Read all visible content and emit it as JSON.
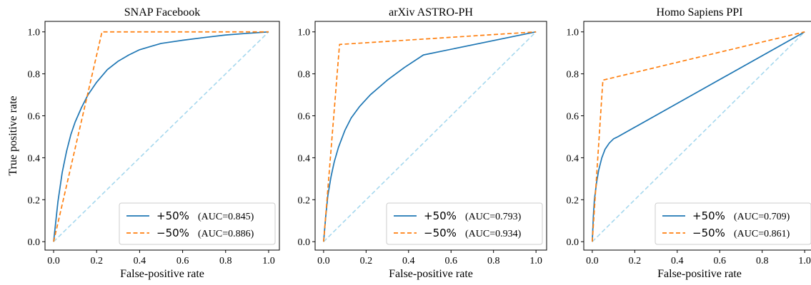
{
  "chart_data": [
    {
      "type": "line",
      "title": "SNAP Facebook",
      "xlabel": "False-positive rate",
      "ylabel": "True positive rate",
      "xlim": [
        -0.04,
        1.05
      ],
      "ylim": [
        -0.04,
        1.05
      ],
      "xticks": [
        0.0,
        0.2,
        0.4,
        0.6,
        0.8,
        1.0
      ],
      "xtick_labels": [
        "0.0",
        "0.2",
        "0.4",
        "0.6",
        "0.8",
        "1.0"
      ],
      "yticks": [
        0.0,
        0.2,
        0.4,
        0.6,
        0.8,
        1.0
      ],
      "ytick_labels": [
        "0.0",
        "0.2",
        "0.4",
        "0.6",
        "0.8",
        "1.0"
      ],
      "legend_position": "lower-right",
      "series": [
        {
          "name": "+50%",
          "auc_text": "(AUC=0.845)",
          "color": "#1f77b4",
          "style": "solid",
          "x": [
            0.0,
            0.02,
            0.04,
            0.06,
            0.08,
            0.1,
            0.13,
            0.16,
            0.2,
            0.25,
            0.3,
            0.35,
            0.4,
            0.45,
            0.5,
            0.6,
            0.7,
            0.8,
            0.9,
            1.0
          ],
          "y": [
            0.0,
            0.19,
            0.33,
            0.43,
            0.51,
            0.57,
            0.64,
            0.7,
            0.76,
            0.82,
            0.86,
            0.89,
            0.915,
            0.93,
            0.945,
            0.96,
            0.973,
            0.985,
            0.993,
            1.0
          ]
        },
        {
          "name": "−50%",
          "auc_text": "(AUC=0.886)",
          "color": "#ff7f0e",
          "style": "dashed",
          "x": [
            0.0,
            0.225,
            1.0
          ],
          "y": [
            0.0,
            1.0,
            1.0
          ]
        }
      ],
      "reference": {
        "x": [
          0.0,
          1.0
        ],
        "y": [
          0.0,
          1.0
        ],
        "color": "#a6d8ee",
        "style": "dashed"
      }
    },
    {
      "type": "line",
      "title": "arXiv ASTRO-PH",
      "xlabel": "False-positive rate",
      "ylabel": "",
      "xlim": [
        -0.04,
        1.05
      ],
      "ylim": [
        -0.04,
        1.05
      ],
      "xticks": [
        0.0,
        0.2,
        0.4,
        0.6,
        0.8,
        1.0
      ],
      "xtick_labels": [
        "0.0",
        "0.2",
        "0.4",
        "0.6",
        "0.8",
        "1.0"
      ],
      "yticks": [
        0.0,
        0.2,
        0.4,
        0.6,
        0.8,
        1.0
      ],
      "ytick_labels": [
        "0.0",
        "0.2",
        "0.4",
        "0.6",
        "0.8",
        "1.0"
      ],
      "legend_position": "lower-right",
      "series": [
        {
          "name": "+50%",
          "auc_text": "(AUC=0.793)",
          "color": "#1f77b4",
          "style": "solid",
          "x": [
            0.0,
            0.01,
            0.02,
            0.035,
            0.05,
            0.07,
            0.1,
            0.13,
            0.17,
            0.22,
            0.3,
            0.38,
            0.47,
            1.0
          ],
          "y": [
            0.0,
            0.12,
            0.22,
            0.31,
            0.38,
            0.45,
            0.53,
            0.59,
            0.645,
            0.7,
            0.77,
            0.83,
            0.89,
            1.0
          ]
        },
        {
          "name": "−50%",
          "auc_text": "(AUC=0.934)",
          "color": "#ff7f0e",
          "style": "dashed",
          "x": [
            0.0,
            0.075,
            1.0
          ],
          "y": [
            0.0,
            0.94,
            1.0
          ]
        }
      ],
      "reference": {
        "x": [
          0.0,
          1.0
        ],
        "y": [
          0.0,
          1.0
        ],
        "color": "#a6d8ee",
        "style": "dashed"
      }
    },
    {
      "type": "line",
      "title": "Homo Sapiens PPI",
      "xlabel": "False-positive rate",
      "ylabel": "",
      "xlim": [
        -0.04,
        1.05
      ],
      "ylim": [
        -0.04,
        1.05
      ],
      "xticks": [
        0.0,
        0.2,
        0.4,
        0.6,
        0.8,
        1.0
      ],
      "xtick_labels": [
        "0.0",
        "0.2",
        "0.4",
        "0.6",
        "0.8",
        "1.0"
      ],
      "yticks": [
        0.0,
        0.2,
        0.4,
        0.6,
        0.8,
        1.0
      ],
      "ytick_labels": [
        "0.0",
        "0.2",
        "0.4",
        "0.6",
        "0.8",
        "1.0"
      ],
      "legend_position": "lower-right",
      "series": [
        {
          "name": "+50%",
          "auc_text": "(AUC=0.709)",
          "color": "#1f77b4",
          "style": "solid",
          "x": [
            0.0,
            0.005,
            0.01,
            0.02,
            0.03,
            0.045,
            0.06,
            0.08,
            0.1,
            0.12,
            1.0
          ],
          "y": [
            0.0,
            0.12,
            0.2,
            0.28,
            0.34,
            0.4,
            0.44,
            0.47,
            0.49,
            0.5,
            1.0
          ]
        },
        {
          "name": "−50%",
          "auc_text": "(AUC=0.861)",
          "color": "#ff7f0e",
          "style": "dashed",
          "x": [
            0.0,
            0.05,
            1.0
          ],
          "y": [
            0.0,
            0.77,
            1.0
          ]
        }
      ],
      "reference": {
        "x": [
          0.0,
          1.0
        ],
        "y": [
          0.0,
          1.0
        ],
        "color": "#a6d8ee",
        "style": "dashed"
      }
    }
  ]
}
